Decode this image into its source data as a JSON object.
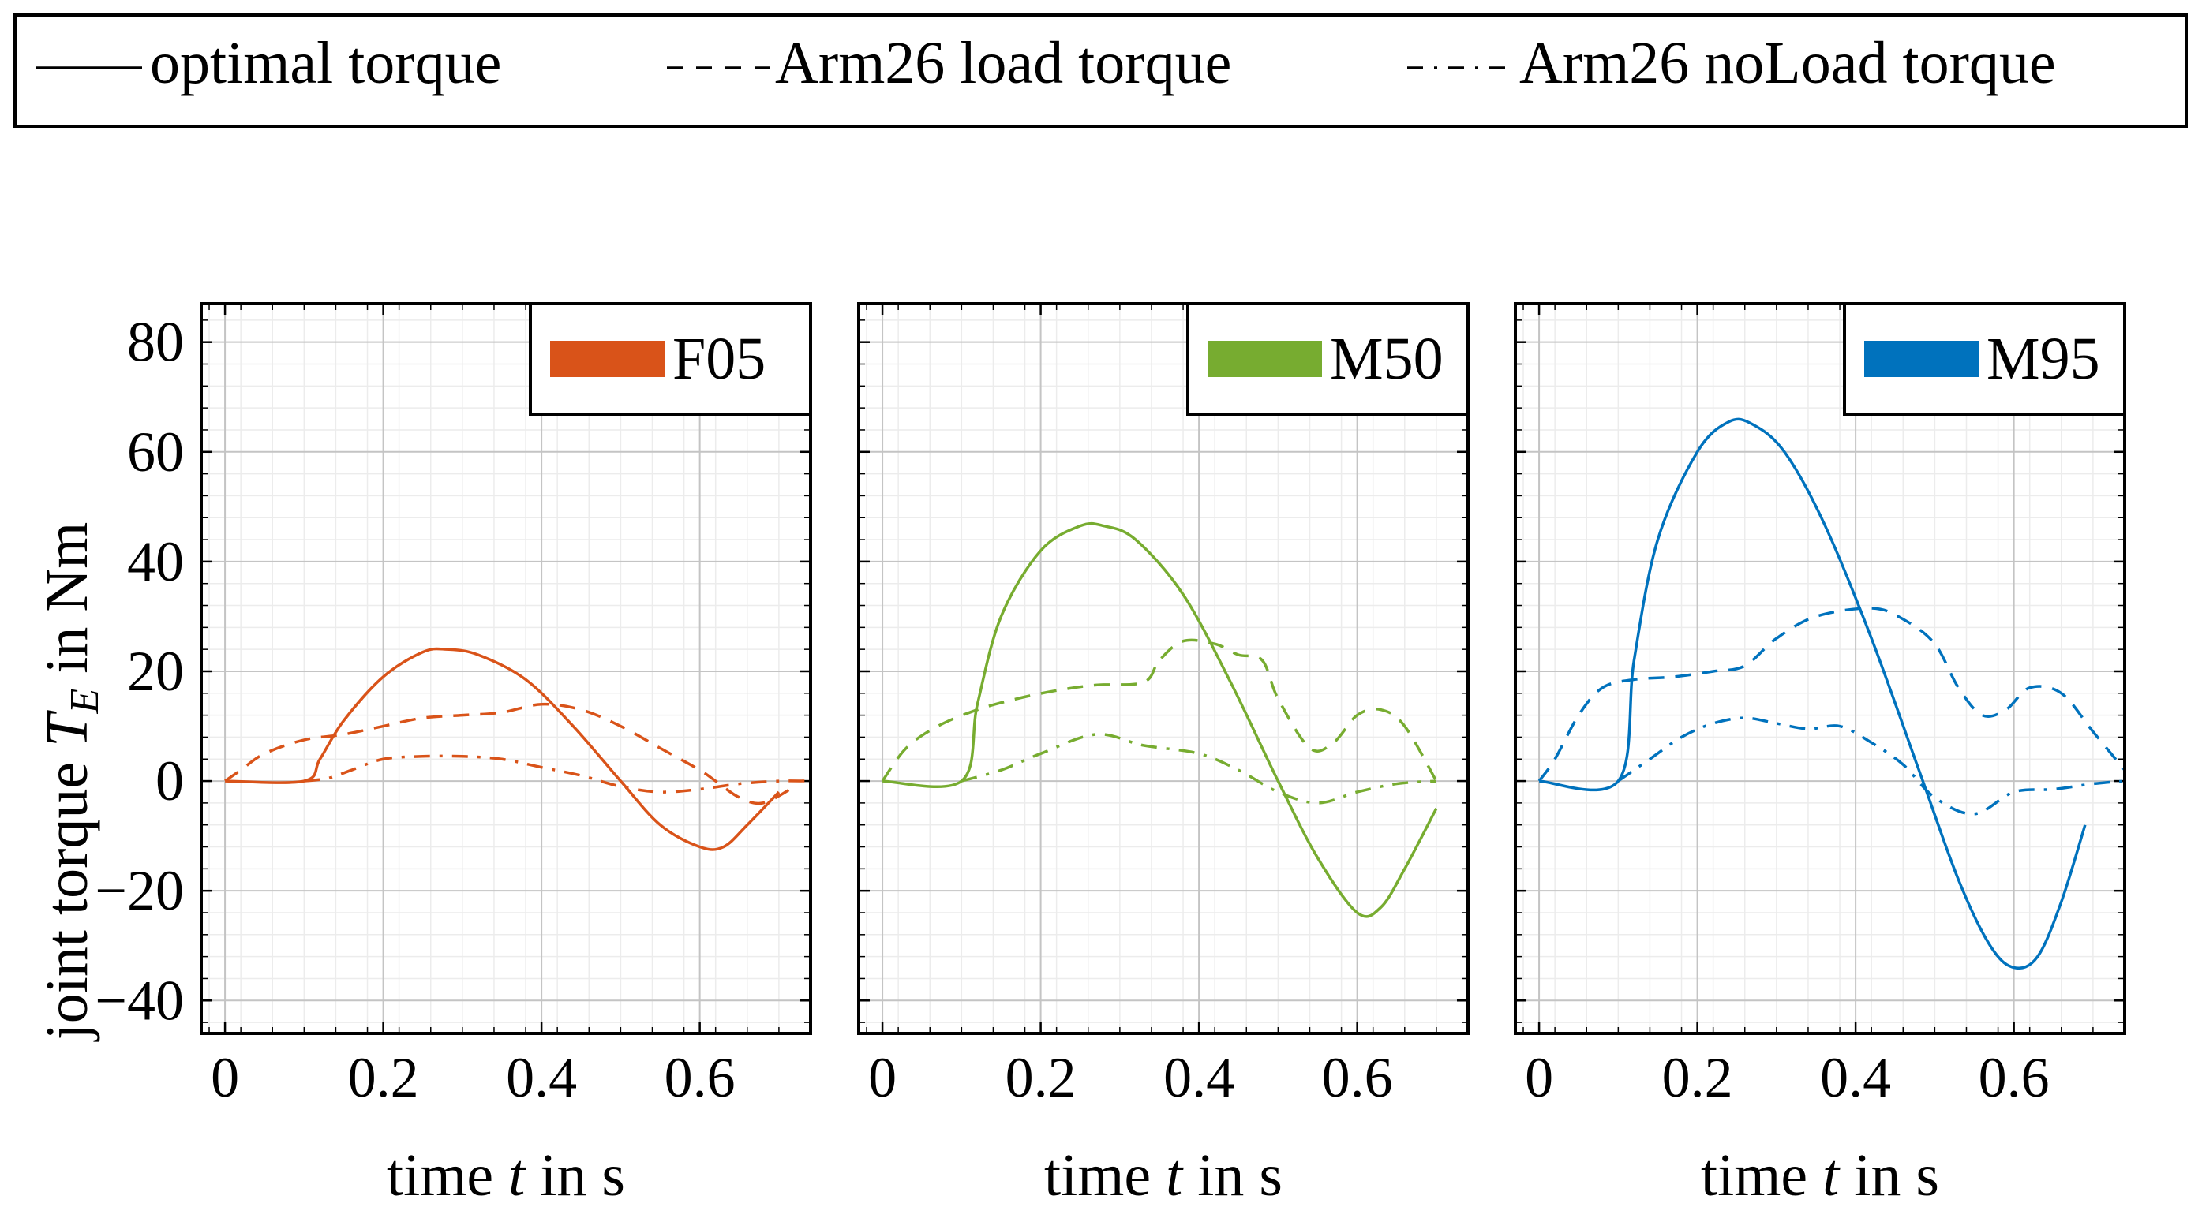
{
  "legend": {
    "entries": [
      {
        "label": "optimal torque",
        "style": "solid"
      },
      {
        "label": "Arm26 load torque",
        "style": "dashed"
      },
      {
        "label": "Arm26 noLoad torque",
        "style": "dashdot"
      }
    ]
  },
  "chart_data": [
    {
      "type": "line",
      "name": "F05",
      "color": "#d95319",
      "xlabel_parts": [
        "time ",
        "t",
        " in s"
      ],
      "ylabel_parts": [
        "joint torque ",
        "T",
        "E",
        " in Nm"
      ],
      "xlim": [
        -0.03,
        0.74
      ],
      "ylim": [
        -46,
        87
      ],
      "xticks": [
        0,
        0.2,
        0.4,
        0.6
      ],
      "xtick_labels": [
        "0",
        "0.2",
        "0.4",
        "0.6"
      ],
      "yticks": [
        -40,
        -20,
        0,
        20,
        40,
        60,
        80
      ],
      "ytick_labels": [
        "−40",
        "−20",
        "0",
        "20",
        "40",
        "60",
        "80"
      ],
      "series": [
        {
          "name": "optimal torque",
          "style": "solid",
          "x": [
            0,
            0.1,
            0.12,
            0.15,
            0.2,
            0.25,
            0.28,
            0.32,
            0.38,
            0.44,
            0.5,
            0.55,
            0.6,
            0.63,
            0.66,
            0.7
          ],
          "y": [
            0,
            0,
            4,
            11,
            19,
            23.5,
            24,
            23,
            18.5,
            10,
            0,
            -8,
            -12,
            -12,
            -8,
            -2
          ]
        },
        {
          "name": "Arm26 load torque",
          "style": "dashed",
          "x": [
            0,
            0.02,
            0.05,
            0.1,
            0.15,
            0.2,
            0.25,
            0.3,
            0.35,
            0.4,
            0.45,
            0.5,
            0.55,
            0.6,
            0.62,
            0.65,
            0.68,
            0.72
          ],
          "y": [
            0,
            2,
            5,
            7.5,
            8.5,
            10,
            11.5,
            12,
            12.5,
            14,
            13,
            10,
            6,
            2,
            0,
            -3,
            -4,
            -1
          ]
        },
        {
          "name": "Arm26 noLoad torque",
          "style": "dashdot",
          "x": [
            0.1,
            0.13,
            0.16,
            0.2,
            0.25,
            0.3,
            0.35,
            0.4,
            0.45,
            0.5,
            0.55,
            0.6,
            0.65,
            0.7,
            0.74
          ],
          "y": [
            0,
            0.5,
            2,
            4,
            4.5,
            4.5,
            4,
            2.5,
            1,
            -1,
            -2,
            -1.5,
            -0.5,
            0,
            0
          ]
        }
      ]
    },
    {
      "type": "line",
      "name": "M50",
      "color": "#77ac30",
      "xlabel_parts": [
        "time ",
        "t",
        " in s"
      ],
      "xlim": [
        -0.03,
        0.74
      ],
      "ylim": [
        -46,
        87
      ],
      "xticks": [
        0,
        0.2,
        0.4,
        0.6
      ],
      "xtick_labels": [
        "0",
        "0.2",
        "0.4",
        "0.6"
      ],
      "series": [
        {
          "name": "optimal torque",
          "style": "solid",
          "x": [
            0,
            0.1,
            0.12,
            0.15,
            0.2,
            0.25,
            0.28,
            0.32,
            0.38,
            0.44,
            0.5,
            0.55,
            0.6,
            0.63,
            0.66,
            0.7
          ],
          "y": [
            0,
            0,
            14,
            30,
            42,
            46.5,
            46.5,
            44,
            34,
            18,
            0,
            -14,
            -24,
            -23,
            -16,
            -5
          ]
        },
        {
          "name": "Arm26 load torque",
          "style": "dashed",
          "x": [
            0,
            0.03,
            0.07,
            0.12,
            0.17,
            0.22,
            0.27,
            0.33,
            0.35,
            0.38,
            0.42,
            0.45,
            0.48,
            0.5,
            0.54,
            0.57,
            0.6,
            0.63,
            0.66,
            0.7
          ],
          "y": [
            0,
            6,
            10,
            13,
            15,
            16.5,
            17.5,
            18,
            22,
            25.5,
            25,
            23,
            22,
            15,
            6,
            7,
            12,
            13,
            10,
            0
          ]
        },
        {
          "name": "Arm26 noLoad torque",
          "style": "dashdot",
          "x": [
            0.1,
            0.15,
            0.2,
            0.27,
            0.33,
            0.4,
            0.45,
            0.5,
            0.55,
            0.6,
            0.65,
            0.7
          ],
          "y": [
            0,
            2,
            5,
            8.5,
            6.5,
            5,
            2,
            -2,
            -4,
            -2,
            -0.5,
            0
          ]
        }
      ]
    },
    {
      "type": "line",
      "name": "M95",
      "color": "#0072bd",
      "xlabel_parts": [
        "time ",
        "t",
        " in s"
      ],
      "xlim": [
        -0.03,
        0.74
      ],
      "ylim": [
        -46,
        87
      ],
      "xticks": [
        0,
        0.2,
        0.4,
        0.6
      ],
      "xtick_labels": [
        "0",
        "0.2",
        "0.4",
        "0.6"
      ],
      "series": [
        {
          "name": "optimal torque",
          "style": "solid",
          "x": [
            0,
            0.1,
            0.12,
            0.15,
            0.2,
            0.24,
            0.27,
            0.31,
            0.36,
            0.42,
            0.48,
            0.53,
            0.57,
            0.6,
            0.63,
            0.66,
            0.69
          ],
          "y": [
            0,
            0,
            22,
            44,
            60,
            65.5,
            65,
            60,
            47,
            26,
            2,
            -18,
            -30,
            -34,
            -32,
            -22,
            -8
          ]
        },
        {
          "name": "Arm26 load torque",
          "style": "dashed",
          "x": [
            0,
            0.02,
            0.05,
            0.08,
            0.12,
            0.17,
            0.22,
            0.26,
            0.3,
            0.35,
            0.42,
            0.46,
            0.5,
            0.53,
            0.56,
            0.59,
            0.62,
            0.66,
            0.7,
            0.74
          ],
          "y": [
            0,
            4,
            12,
            17,
            18.5,
            19,
            20,
            21,
            26,
            30,
            31.5,
            29.5,
            25,
            17,
            12,
            13,
            17,
            16,
            9,
            2
          ]
        },
        {
          "name": "Arm26 noLoad torque",
          "style": "dashdot",
          "x": [
            0.1,
            0.14,
            0.18,
            0.22,
            0.26,
            0.3,
            0.34,
            0.38,
            0.42,
            0.46,
            0.5,
            0.55,
            0.6,
            0.65,
            0.7,
            0.74
          ],
          "y": [
            0,
            4,
            8,
            10.5,
            11.5,
            10.5,
            9.5,
            10,
            7,
            3,
            -3,
            -6,
            -2,
            -1.5,
            -0.5,
            0
          ]
        }
      ]
    }
  ]
}
